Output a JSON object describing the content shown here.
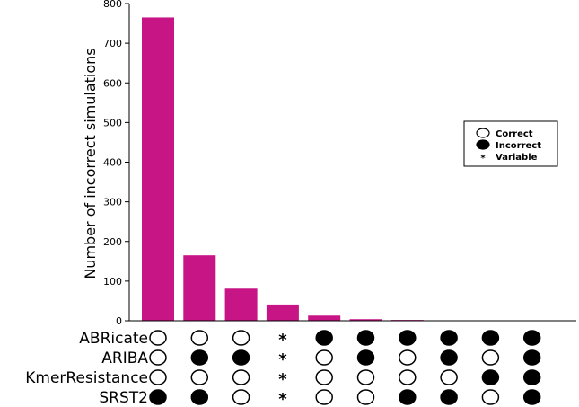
{
  "chart_data": {
    "type": "bar",
    "ylabel": "Number of incorrect simulations",
    "ylim": [
      0,
      800
    ],
    "yticks": [
      0,
      100,
      200,
      300,
      400,
      500,
      600,
      700,
      800
    ],
    "bar_color": "#c71585",
    "values": [
      765,
      165,
      81,
      41,
      13,
      4,
      2,
      1,
      1,
      1
    ],
    "tools": [
      "ABRicate",
      "ARIBA",
      "KmerResistance",
      "SRST2"
    ],
    "matrix": [
      [
        "C",
        "C",
        "C",
        "V",
        "I",
        "I",
        "I",
        "I",
        "I",
        "I"
      ],
      [
        "C",
        "I",
        "I",
        "V",
        "C",
        "I",
        "C",
        "I",
        "C",
        "I"
      ],
      [
        "C",
        "C",
        "C",
        "V",
        "C",
        "C",
        "C",
        "C",
        "I",
        "I"
      ],
      [
        "I",
        "I",
        "C",
        "V",
        "C",
        "C",
        "I",
        "I",
        "C",
        "I"
      ]
    ],
    "legend": {
      "position": "right",
      "items": [
        {
          "symbol": "open-circle",
          "label": "Correct"
        },
        {
          "symbol": "filled-circle",
          "label": "Incorrect"
        },
        {
          "symbol": "star",
          "label": "Variable"
        }
      ]
    },
    "star_glyph": "*"
  }
}
